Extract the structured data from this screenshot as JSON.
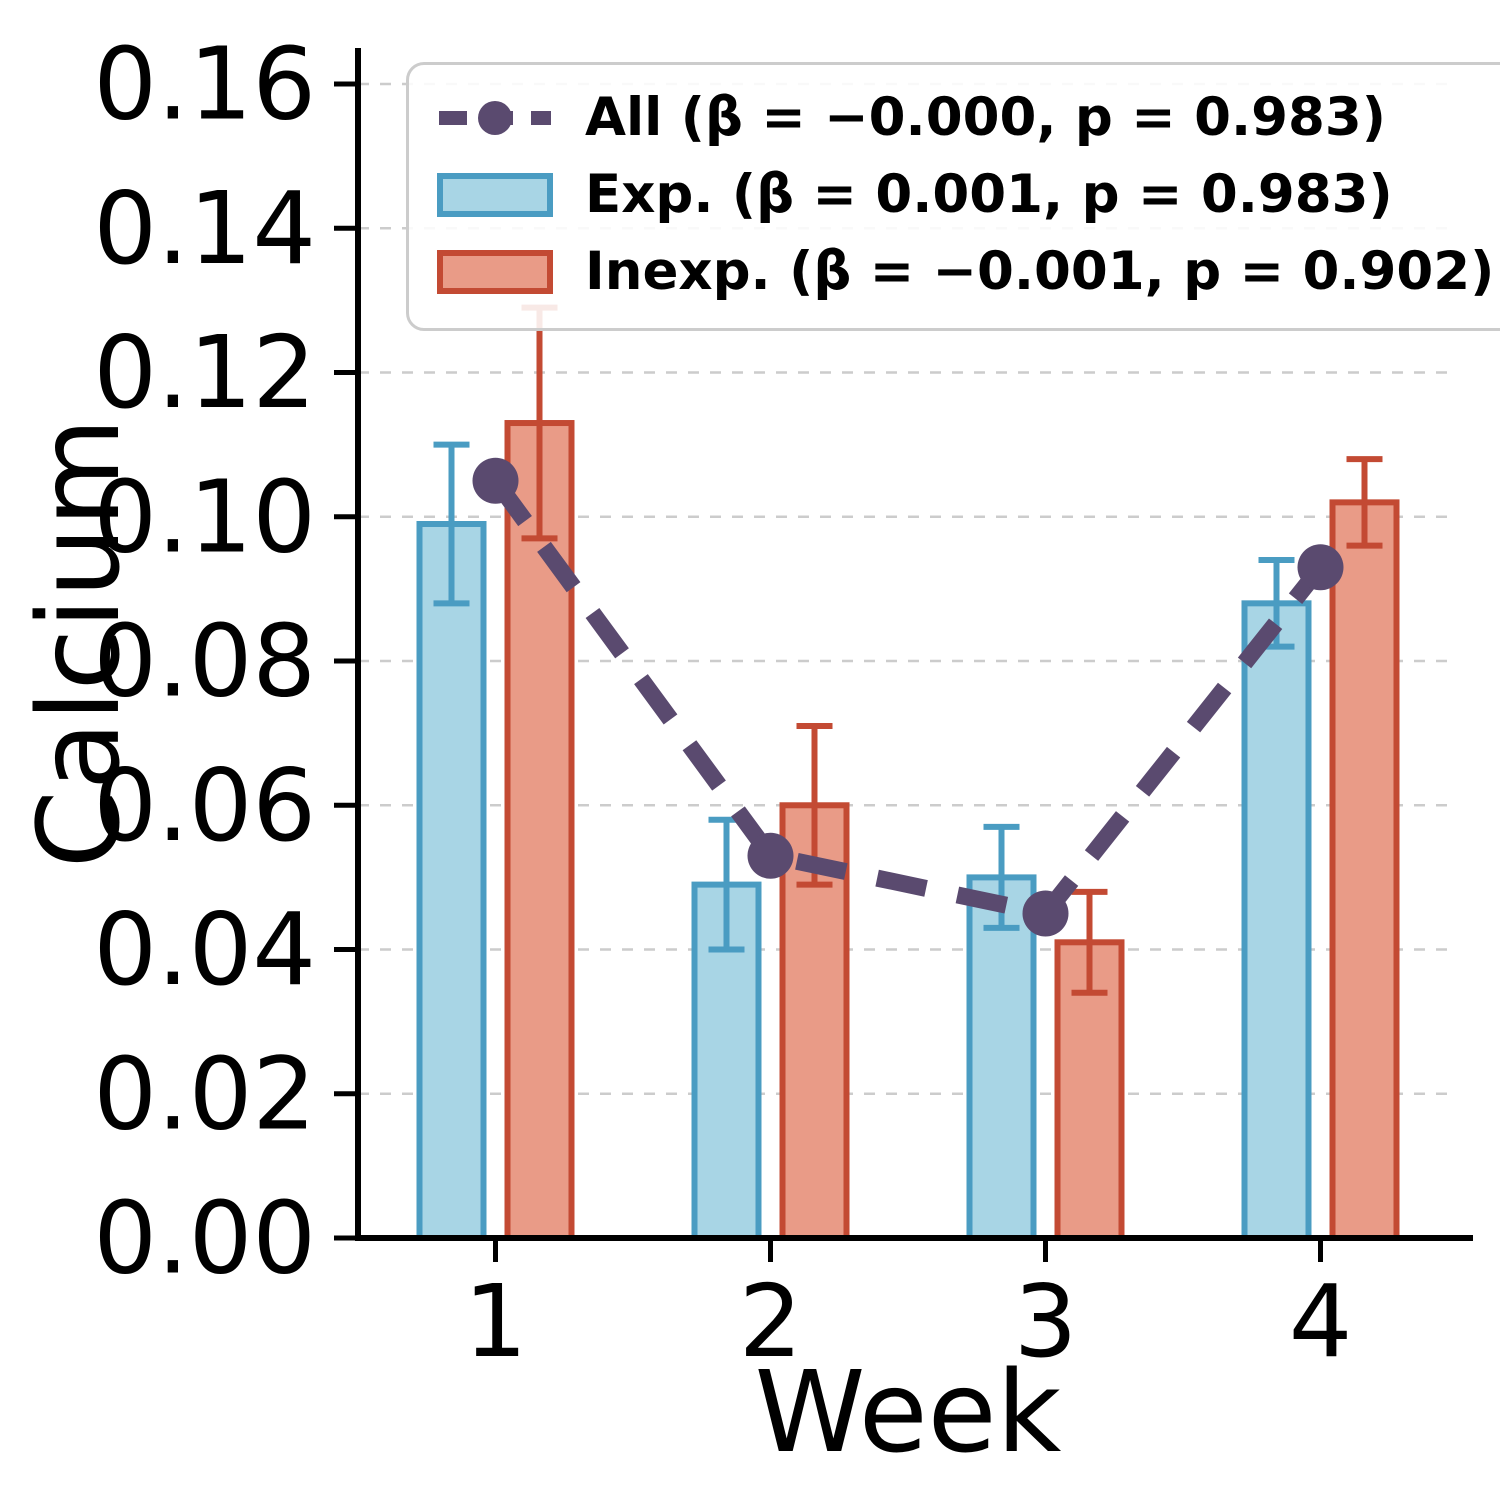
{
  "chart_data": {
    "type": "bar",
    "title": "",
    "xlabel": "Week",
    "ylabel": "Calcium",
    "categories": [
      "1",
      "2",
      "3",
      "4"
    ],
    "ylim": [
      0,
      0.165
    ],
    "yticks": [
      0.0,
      0.02,
      0.04,
      0.06,
      0.08,
      0.1,
      0.12,
      0.14,
      0.16
    ],
    "grid": "horizontal-dashed",
    "legend_position": "upper-left",
    "series": [
      {
        "name": "All",
        "label": "All (β = −0.000, p = 0.983)",
        "type": "line",
        "style": "dashed-with-markers",
        "color": "#5A4A6F",
        "values": [
          0.105,
          0.053,
          0.045,
          0.093
        ]
      },
      {
        "name": "Exp",
        "label": "Exp. (β = 0.001, p = 0.983)",
        "type": "bar",
        "fill": "#A8D5E5",
        "edge": "#4A9CC2",
        "values": [
          0.099,
          0.049,
          0.05,
          0.088
        ],
        "errors": [
          0.011,
          0.009,
          0.007,
          0.006
        ]
      },
      {
        "name": "Inexp",
        "label": "Inexp. (β = −0.001, p = 0.902)",
        "type": "bar",
        "fill": "#E99B87",
        "edge": "#C34A33",
        "values": [
          0.113,
          0.06,
          0.041,
          0.102
        ],
        "errors": [
          0.016,
          0.011,
          0.007,
          0.006
        ]
      }
    ]
  }
}
